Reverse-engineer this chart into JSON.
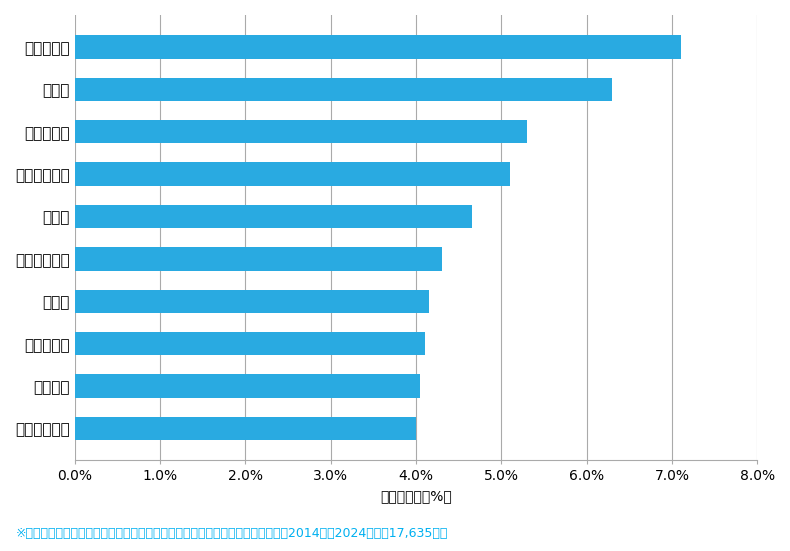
{
  "categories": [
    "札幌市豊平区",
    "苫小牧市",
    "札幌市南区",
    "江別市",
    "札幌市白石区",
    "函館市",
    "札幌市手稲区",
    "札幌市東区",
    "旭川市",
    "札幌市北区"
  ],
  "values": [
    4.0,
    4.05,
    4.1,
    4.15,
    4.3,
    4.65,
    5.1,
    5.3,
    6.3,
    7.1
  ],
  "bar_color": "#29aae1",
  "xlim": [
    0,
    8.0
  ],
  "xticks": [
    0.0,
    1.0,
    2.0,
    3.0,
    4.0,
    5.0,
    6.0,
    7.0,
    8.0
  ],
  "xtick_labels": [
    "0.0%",
    "1.0%",
    "2.0%",
    "3.0%",
    "4.0%",
    "5.0%",
    "6.0%",
    "7.0%",
    "8.0%"
  ],
  "xlabel": "件数の割合（%）",
  "footnote": "※弊社受付の案件を対象に、受付時に市区町村の回答があったものを集計（期間2014年〜2024年、計17,635件）",
  "footnote_color": "#00b0f0",
  "bar_height": 0.55,
  "background_color": "#ffffff",
  "grid_color": "#aaaaaa",
  "label_fontsize": 11,
  "tick_fontsize": 10,
  "xlabel_fontsize": 10,
  "footnote_fontsize": 9
}
